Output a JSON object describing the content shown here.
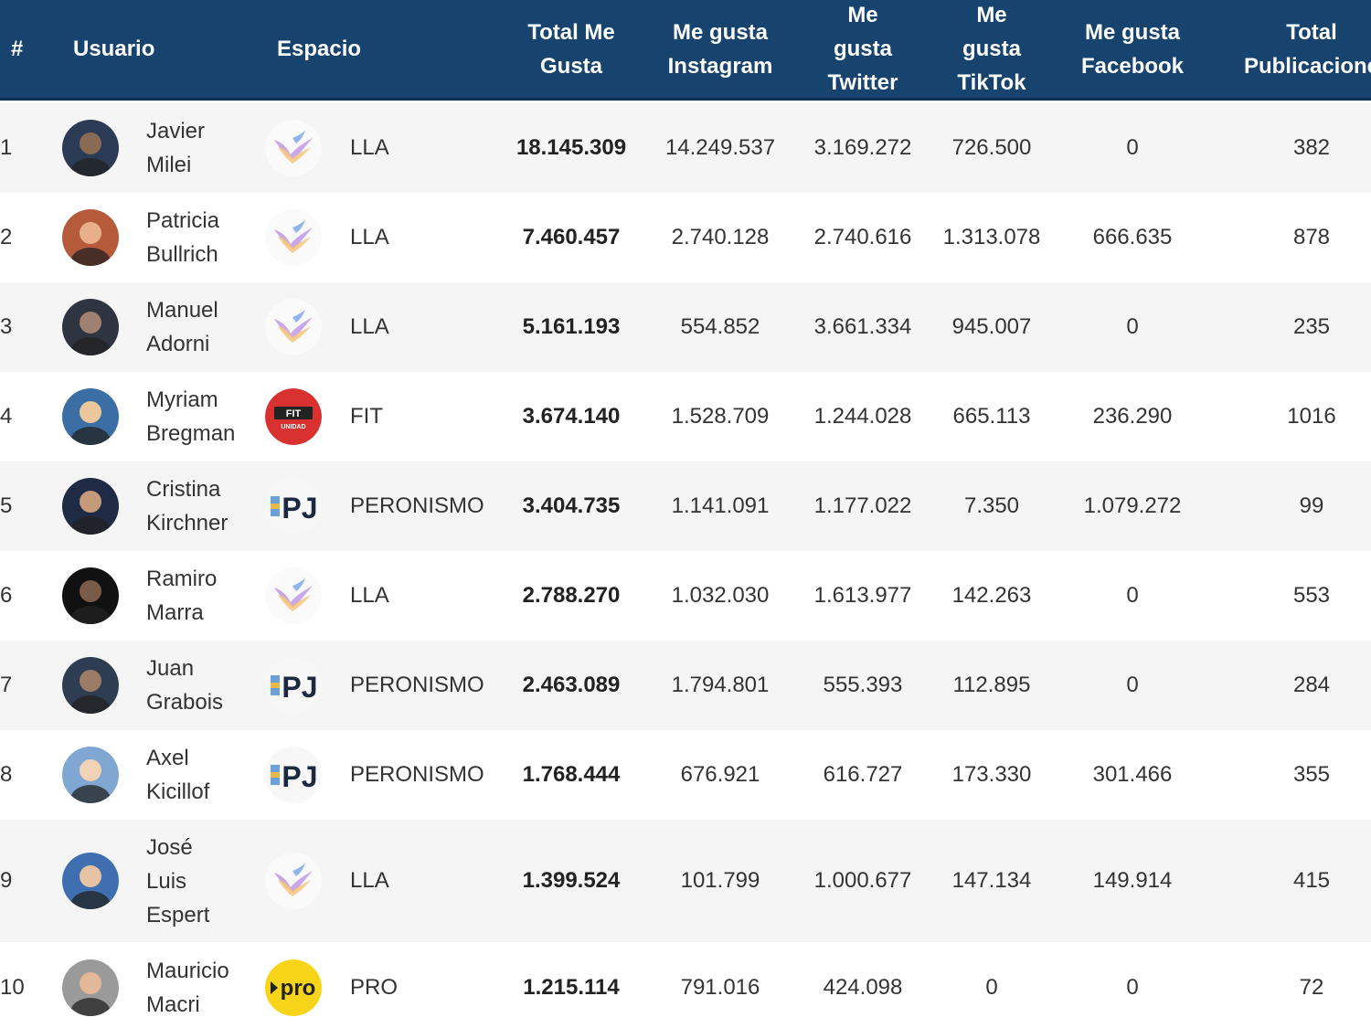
{
  "table": {
    "headers": {
      "rank": "#",
      "usuario": "Usuario",
      "espacio": "Espacio",
      "total": "Total Me\nGusta",
      "instagram": "Me gusta\nInstagram",
      "twitter": "Me\ngusta\nTwitter",
      "tiktok": "Me\ngusta\nTikTok",
      "facebook": "Me gusta\nFacebook",
      "publicaciones": "Total\nPublicacione"
    },
    "rows": [
      {
        "rank": "1",
        "name": "Javier\nMilei",
        "espacio": "LLA",
        "logo": "lla-logo",
        "total": "18.145.309",
        "instagram": "14.249.537",
        "twitter": "3.169.272",
        "tiktok": "726.500",
        "facebook": "0",
        "publicaciones": "382"
      },
      {
        "rank": "2",
        "name": "Patricia\nBullrich",
        "espacio": "LLA",
        "logo": "lla-logo",
        "total": "7.460.457",
        "instagram": "2.740.128",
        "twitter": "2.740.616",
        "tiktok": "1.313.078",
        "facebook": "666.635",
        "publicaciones": "878"
      },
      {
        "rank": "3",
        "name": "Manuel\nAdorni",
        "espacio": "LLA",
        "logo": "lla-logo",
        "total": "5.161.193",
        "instagram": "554.852",
        "twitter": "3.661.334",
        "tiktok": "945.007",
        "facebook": "0",
        "publicaciones": "235"
      },
      {
        "rank": "4",
        "name": "Myriam\nBregman",
        "espacio": "FIT",
        "logo": "fit-logo",
        "total": "3.674.140",
        "instagram": "1.528.709",
        "twitter": "1.244.028",
        "tiktok": "665.113",
        "facebook": "236.290",
        "publicaciones": "1016"
      },
      {
        "rank": "5",
        "name": "Cristina\nKirchner",
        "espacio": "PERONISMO",
        "logo": "pj-logo",
        "total": "3.404.735",
        "instagram": "1.141.091",
        "twitter": "1.177.022",
        "tiktok": "7.350",
        "facebook": "1.079.272",
        "publicaciones": "99"
      },
      {
        "rank": "6",
        "name": "Ramiro\nMarra",
        "espacio": "LLA",
        "logo": "lla-logo",
        "total": "2.788.270",
        "instagram": "1.032.030",
        "twitter": "1.613.977",
        "tiktok": "142.263",
        "facebook": "0",
        "publicaciones": "553"
      },
      {
        "rank": "7",
        "name": "Juan\nGrabois",
        "espacio": "PERONISMO",
        "logo": "pj-logo",
        "total": "2.463.089",
        "instagram": "1.794.801",
        "twitter": "555.393",
        "tiktok": "112.895",
        "facebook": "0",
        "publicaciones": "284"
      },
      {
        "rank": "8",
        "name": "Axel\nKicillof",
        "espacio": "PERONISMO",
        "logo": "pj-logo",
        "total": "1.768.444",
        "instagram": "676.921",
        "twitter": "616.727",
        "tiktok": "173.330",
        "facebook": "301.466",
        "publicaciones": "355"
      },
      {
        "rank": "9",
        "name": "José\nLuis\nEspert",
        "espacio": "LLA",
        "logo": "lla-logo",
        "total": "1.399.524",
        "instagram": "101.799",
        "twitter": "1.000.677",
        "tiktok": "147.134",
        "facebook": "149.914",
        "publicaciones": "415"
      },
      {
        "rank": "10",
        "name": "Mauricio\nMacri",
        "espacio": "PRO",
        "logo": "pro-logo",
        "total": "1.215.114",
        "instagram": "791.016",
        "twitter": "424.098",
        "tiktok": "0",
        "facebook": "0",
        "publicaciones": "72"
      }
    ]
  },
  "logos": {
    "fit_text": "FIT",
    "fit_sub": "UNIDAD",
    "pj_text": "PJ",
    "pro_text": "pro"
  },
  "colors": {
    "header_bg": "#17436f",
    "row_alt": "#f5f5f5",
    "fit_red": "#d9312f",
    "pro_yellow": "#f7d417"
  }
}
